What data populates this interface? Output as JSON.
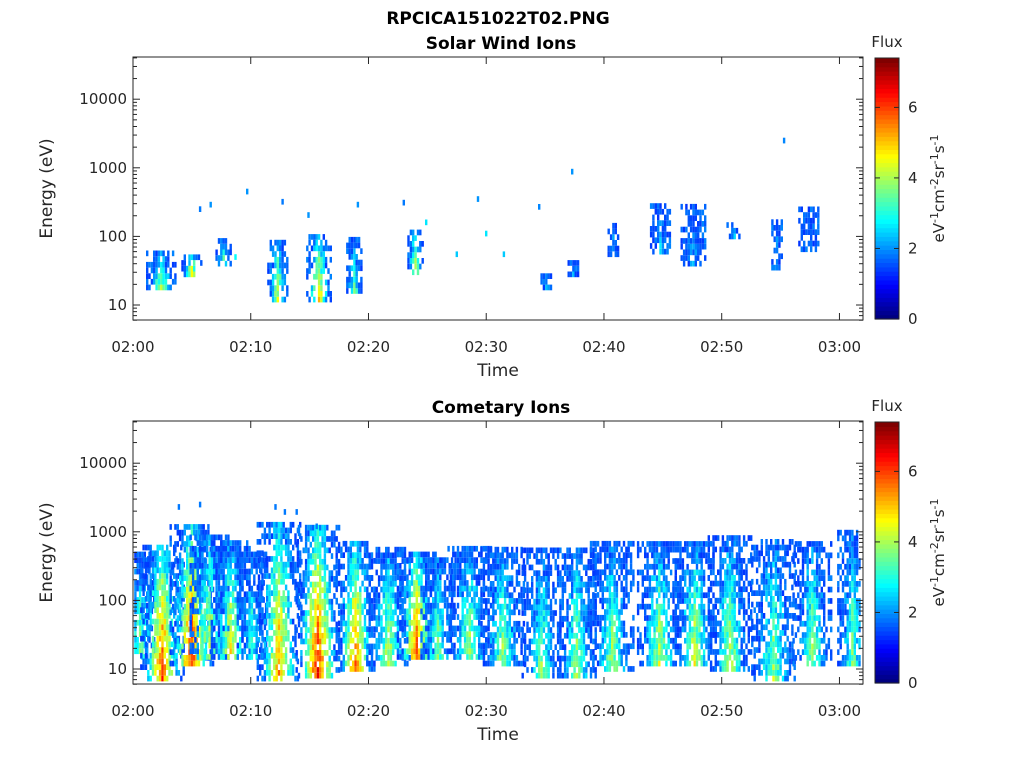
{
  "figure_title": "RPCICA151022T02.PNG",
  "chart_data": [
    {
      "type": "heatmap",
      "title": "Solar Wind Ions",
      "xlabel": "Time",
      "ylabel": "Energy (eV)",
      "y_scale": "log",
      "ylim": [
        6,
        45000
      ],
      "y_ticks": [
        10,
        100,
        1000,
        10000
      ],
      "y_tick_labels": [
        "10",
        "100",
        "1000",
        "10000"
      ],
      "x_ticks": [
        "02:00",
        "02:10",
        "02:20",
        "02:30",
        "02:40",
        "02:50",
        "03:00"
      ],
      "x_range_minutes": [
        0,
        62
      ],
      "colorbar": {
        "title": "Flux",
        "label": "eV-1cm-2sr-1s-1",
        "range": [
          0,
          7.4
        ],
        "ticks": [
          "0",
          "2",
          "4",
          "6"
        ],
        "colormap": "jet"
      },
      "bursts": [
        {
          "t": 2.3,
          "e": [
            18,
            60
          ],
          "p": 4.0,
          "spread": 0.6
        },
        {
          "t": 4.9,
          "e": [
            28,
            60
          ],
          "p": 4.6,
          "spread": 0.4
        },
        {
          "t": 7.6,
          "e": [
            40,
            90
          ],
          "p": 3.2,
          "spread": 0.3
        },
        {
          "t": 12.2,
          "e": [
            12,
            95
          ],
          "p": 4.3,
          "spread": 0.4
        },
        {
          "t": 15.7,
          "e": [
            12,
            110
          ],
          "p": 4.8,
          "spread": 0.5
        },
        {
          "t": 18.7,
          "e": [
            16,
            90
          ],
          "p": 3.6,
          "spread": 0.3
        },
        {
          "t": 23.9,
          "e": [
            30,
            120
          ],
          "p": 4.6,
          "spread": 0.3
        },
        {
          "t": 35.0,
          "e": [
            18,
            30
          ],
          "p": 2.3,
          "spread": 0.2
        },
        {
          "t": 37.3,
          "e": [
            28,
            45
          ],
          "p": 2.4,
          "spread": 0.2
        },
        {
          "t": 40.7,
          "e": [
            55,
            170
          ],
          "p": 2.3,
          "spread": 0.2
        },
        {
          "t": 44.7,
          "e": [
            60,
            320
          ],
          "p": 2.2,
          "spread": 0.4
        },
        {
          "t": 47.5,
          "e": [
            40,
            280
          ],
          "p": 2.2,
          "spread": 0.5
        },
        {
          "t": 51.0,
          "e": [
            100,
            170
          ],
          "p": 2.1,
          "spread": 0.3
        },
        {
          "t": 54.6,
          "e": [
            35,
            180
          ],
          "p": 2.4,
          "spread": 0.2
        },
        {
          "t": 57.3,
          "e": [
            65,
            280
          ],
          "p": 2.2,
          "spread": 0.4
        }
      ],
      "points": [
        {
          "t": 9.6,
          "e": 450,
          "v": 2.0
        },
        {
          "t": 12.6,
          "e": 320,
          "v": 1.8
        },
        {
          "t": 14.8,
          "e": 205,
          "v": 2.0
        },
        {
          "t": 19.0,
          "e": 290,
          "v": 2.0
        },
        {
          "t": 22.9,
          "e": 310,
          "v": 1.8
        },
        {
          "t": 29.2,
          "e": 350,
          "v": 2.0
        },
        {
          "t": 34.4,
          "e": 270,
          "v": 1.9
        },
        {
          "t": 37.2,
          "e": 880,
          "v": 2.0
        },
        {
          "t": 55.2,
          "e": 2500,
          "v": 1.9
        },
        {
          "t": 27.4,
          "e": 55,
          "v": 2.4
        },
        {
          "t": 29.9,
          "e": 110,
          "v": 2.6
        },
        {
          "t": 31.4,
          "e": 55,
          "v": 2.4
        },
        {
          "t": 24.8,
          "e": 160,
          "v": 2.6
        },
        {
          "t": 5.6,
          "e": 250,
          "v": 1.8
        },
        {
          "t": 6.5,
          "e": 290,
          "v": 2.0
        },
        {
          "t": 8.6,
          "e": 50,
          "v": 2.8
        }
      ]
    },
    {
      "type": "heatmap",
      "title": "Cometary Ions",
      "xlabel": "Time",
      "ylabel": "Energy (eV)",
      "y_scale": "log",
      "ylim": [
        6,
        45000
      ],
      "y_ticks": [
        10,
        100,
        1000,
        10000
      ],
      "y_tick_labels": [
        "10",
        "100",
        "1000",
        "10000"
      ],
      "x_ticks": [
        "02:00",
        "02:10",
        "02:20",
        "02:30",
        "02:40",
        "02:50",
        "03:00"
      ],
      "x_range_minutes": [
        0,
        62
      ],
      "colorbar": {
        "title": "Flux",
        "label": "eV-1cm-2sr-1s-1",
        "range": [
          0,
          7.4
        ],
        "ticks": [
          "0",
          "2",
          "4",
          "6"
        ],
        "colormap": "jet"
      },
      "bursts": [
        {
          "t": 0.5,
          "e": [
            15,
            500
          ],
          "p": 3.6,
          "spread": 0.7
        },
        {
          "t": 2.4,
          "e": [
            6,
            700
          ],
          "p": 6.0,
          "spread": 0.9
        },
        {
          "t": 4.9,
          "e": [
            12,
            1200
          ],
          "p": 6.3,
          "spread": 0.9
        },
        {
          "t": 6.4,
          "e": [
            15,
            900
          ],
          "p": 4.4,
          "spread": 0.8
        },
        {
          "t": 8.2,
          "e": [
            15,
            700
          ],
          "p": 4.6,
          "spread": 0.8
        },
        {
          "t": 10.0,
          "e": [
            15,
            500
          ],
          "p": 3.2,
          "spread": 0.6
        },
        {
          "t": 12.3,
          "e": [
            6,
            1500
          ],
          "p": 5.4,
          "spread": 0.9
        },
        {
          "t": 15.6,
          "e": [
            8,
            1200
          ],
          "p": 6.4,
          "spread": 0.9
        },
        {
          "t": 18.8,
          "e": [
            10,
            700
          ],
          "p": 5.7,
          "spread": 0.8
        },
        {
          "t": 21.6,
          "e": [
            12,
            600
          ],
          "p": 4.2,
          "spread": 0.9
        },
        {
          "t": 24.0,
          "e": [
            15,
            500
          ],
          "p": 5.9,
          "spread": 0.8
        },
        {
          "t": 25.8,
          "e": [
            15,
            450
          ],
          "p": 3.7,
          "spread": 0.7
        },
        {
          "t": 28.5,
          "e": [
            15,
            650
          ],
          "p": 3.9,
          "spread": 0.9
        },
        {
          "t": 31.3,
          "e": [
            12,
            600
          ],
          "p": 3.9,
          "spread": 0.9
        },
        {
          "t": 34.6,
          "e": [
            8,
            550
          ],
          "p": 3.7,
          "spread": 0.8
        },
        {
          "t": 37.6,
          "e": [
            8,
            600
          ],
          "p": 4.0,
          "spread": 0.8
        },
        {
          "t": 40.6,
          "e": [
            10,
            700
          ],
          "p": 3.9,
          "spread": 0.9
        },
        {
          "t": 44.6,
          "e": [
            12,
            750
          ],
          "p": 4.2,
          "spread": 0.9
        },
        {
          "t": 47.6,
          "e": [
            12,
            750
          ],
          "p": 4.3,
          "spread": 0.9
        },
        {
          "t": 50.6,
          "e": [
            10,
            850
          ],
          "p": 4.2,
          "spread": 0.9
        },
        {
          "t": 54.3,
          "e": [
            6,
            850
          ],
          "p": 4.0,
          "spread": 0.9
        },
        {
          "t": 57.6,
          "e": [
            12,
            800
          ],
          "p": 3.9,
          "spread": 0.8
        },
        {
          "t": 61.0,
          "e": [
            12,
            1100
          ],
          "p": 3.6,
          "spread": 0.6
        }
      ],
      "points": [
        {
          "t": 3.8,
          "e": 2300,
          "v": 1.8
        },
        {
          "t": 5.6,
          "e": 2500,
          "v": 1.8
        },
        {
          "t": 12.0,
          "e": 2300,
          "v": 1.8
        },
        {
          "t": 12.8,
          "e": 1950,
          "v": 1.8
        },
        {
          "t": 13.8,
          "e": 1950,
          "v": 1.8
        },
        {
          "t": 15.5,
          "e": 1200,
          "v": 1.8
        }
      ]
    }
  ]
}
